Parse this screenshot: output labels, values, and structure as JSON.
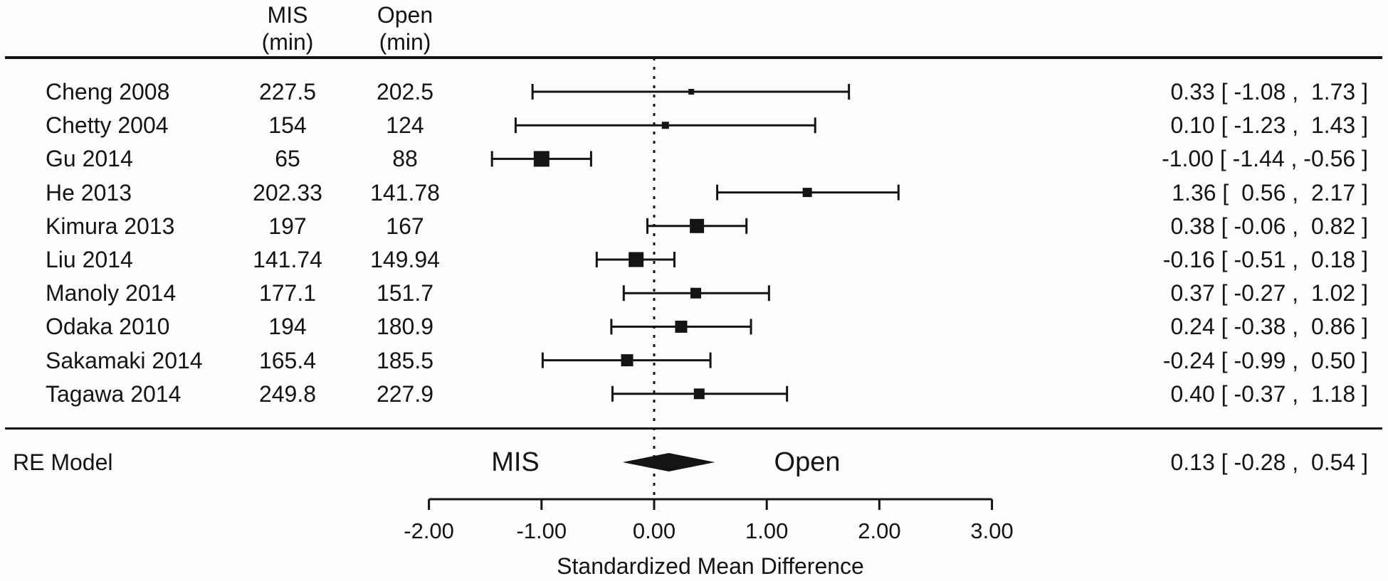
{
  "columns": {
    "mis_header": "MIS\n(min)",
    "open_header": "Open\n(min)"
  },
  "chart_data": {
    "type": "forest",
    "xlabel": "Standardized Mean Difference",
    "xlim": [
      -2,
      3
    ],
    "axis_ticks": [
      -2,
      -1,
      0,
      1,
      2,
      3
    ],
    "axis_tick_labels": [
      "-2.00",
      "-1.00",
      "0.00",
      "1.00",
      "2.00",
      "3.00"
    ],
    "zero_line": 0,
    "group_label_left": "MIS",
    "group_label_right": "Open",
    "studies": [
      {
        "label": "Cheng 2008",
        "mis": "227.5",
        "open": "202.5",
        "est": 0.33,
        "ci_lower": -1.08,
        "ci_upper": 1.73,
        "annotation": "0.33 [ -1.08 ,  1.73 ]",
        "marker_size": 8
      },
      {
        "label": "Chetty 2004",
        "mis": "154",
        "open": "124",
        "est": 0.1,
        "ci_lower": -1.23,
        "ci_upper": 1.43,
        "annotation": "0.10 [ -1.23 ,  1.43 ]",
        "marker_size": 10
      },
      {
        "label": "Gu 2014",
        "mis": "65",
        "open": "88",
        "est": -1.0,
        "ci_lower": -1.44,
        "ci_upper": -0.56,
        "annotation": "-1.00 [ -1.44 , -0.56 ]",
        "marker_size": 22
      },
      {
        "label": "He 2013",
        "mis": "202.33",
        "open": "141.78",
        "est": 1.36,
        "ci_lower": 0.56,
        "ci_upper": 2.17,
        "annotation": "1.36 [  0.56 ,  2.17 ]",
        "marker_size": 13
      },
      {
        "label": "Kimura 2013",
        "mis": "197",
        "open": "167",
        "est": 0.38,
        "ci_lower": -0.06,
        "ci_upper": 0.82,
        "annotation": "0.38 [ -0.06 ,  0.82 ]",
        "marker_size": 20
      },
      {
        "label": "Liu 2014",
        "mis": "141.74",
        "open": "149.94",
        "est": -0.16,
        "ci_lower": -0.51,
        "ci_upper": 0.18,
        "annotation": "-0.16 [ -0.51 ,  0.18 ]",
        "marker_size": 21
      },
      {
        "label": "Manoly 2014",
        "mis": "177.1",
        "open": "151.7",
        "est": 0.37,
        "ci_lower": -0.27,
        "ci_upper": 1.02,
        "annotation": "0.37 [ -0.27 ,  1.02 ]",
        "marker_size": 15
      },
      {
        "label": "Odaka 2010",
        "mis": "194",
        "open": "180.9",
        "est": 0.24,
        "ci_lower": -0.38,
        "ci_upper": 0.86,
        "annotation": "0.24 [ -0.38 ,  0.86 ]",
        "marker_size": 17
      },
      {
        "label": "Sakamaki 2014",
        "mis": "165.4",
        "open": "185.5",
        "est": -0.24,
        "ci_lower": -0.99,
        "ci_upper": 0.5,
        "annotation": "-0.24 [ -0.99 ,  0.50 ]",
        "marker_size": 17
      },
      {
        "label": "Tagawa 2014",
        "mis": "249.8",
        "open": "227.9",
        "est": 0.4,
        "ci_lower": -0.37,
        "ci_upper": 1.18,
        "annotation": "0.40 [ -0.37 ,  1.18 ]",
        "marker_size": 15
      }
    ],
    "summary": {
      "label": "RE Model",
      "est": 0.13,
      "ci_lower": -0.28,
      "ci_upper": 0.54,
      "annotation": "0.13 [ -0.28 ,  0.54 ]"
    },
    "colors": {
      "ink": "#141414",
      "background": "#fdfdfd"
    }
  }
}
